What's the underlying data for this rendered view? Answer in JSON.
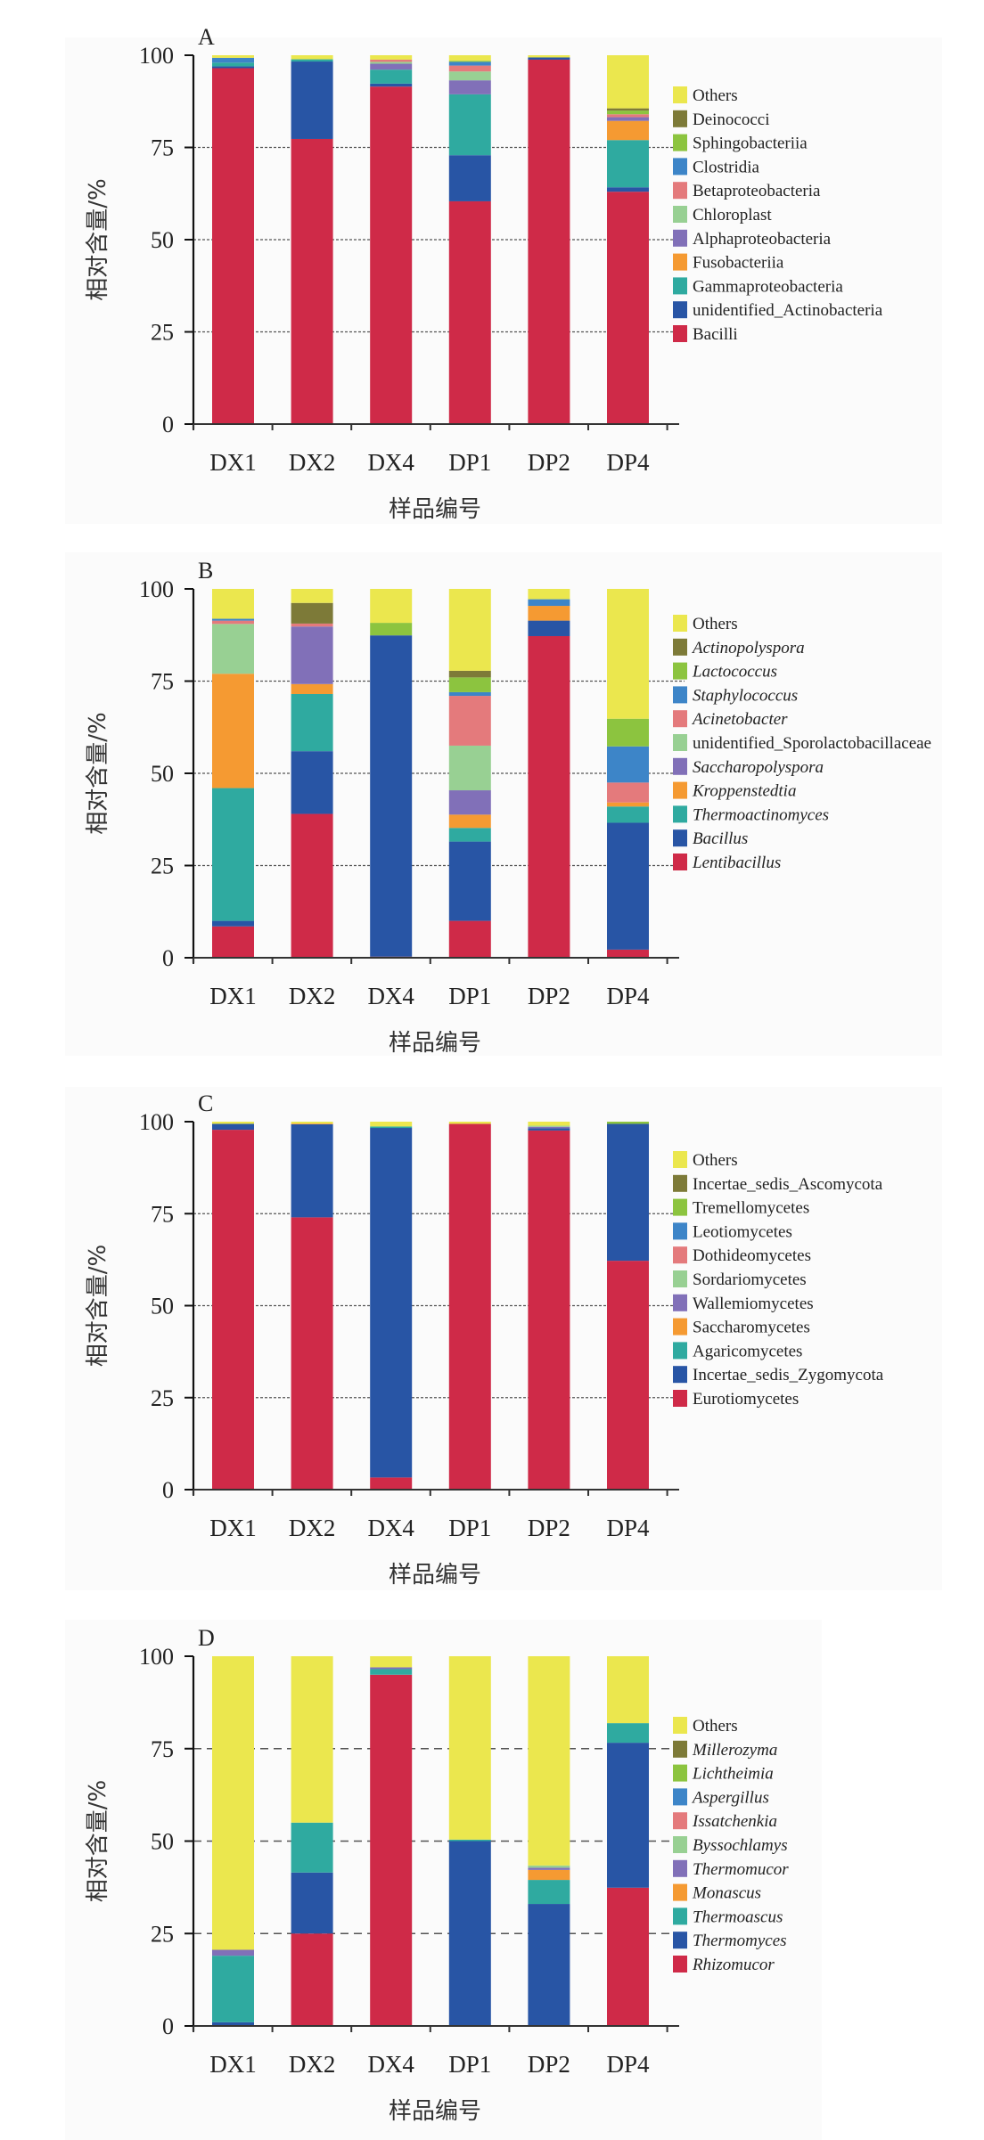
{
  "common": {
    "ylabel": "相对含量/%",
    "xlabel": "样品编号",
    "categories": [
      "DX1",
      "DX2",
      "DX4",
      "DP1",
      "DP2",
      "DP4"
    ],
    "yticks": [
      0,
      25,
      50,
      75,
      100
    ]
  },
  "chart_data": [
    {
      "type": "bar",
      "stacked": true,
      "panel": "A",
      "title": "A",
      "xlabel": "样品编号",
      "ylabel": "相对含量/%",
      "ylim": [
        0,
        100
      ],
      "grid": "dashed at 25, 50, 75",
      "legend_position": "right",
      "italic_legend": false,
      "categories": [
        "DX1",
        "DX2",
        "DX4",
        "DP1",
        "DP2",
        "DP4"
      ],
      "series": [
        {
          "name": "Bacilli",
          "color": "#cf2a48",
          "values": [
            96.5,
            77.3,
            91.5,
            60.4,
            98.8,
            63.0
          ]
        },
        {
          "name": "unidentified_Actinobacteria",
          "color": "#2855a5",
          "values": [
            0.5,
            21.0,
            0.8,
            12.5,
            0.6,
            1.2
          ]
        },
        {
          "name": "Gammaproteobacteria",
          "color": "#2faaa0",
          "values": [
            1.0,
            0.6,
            3.8,
            16.5,
            0.0,
            12.8
          ]
        },
        {
          "name": "Fusobacteriia",
          "color": "#f59a32",
          "values": [
            0.0,
            0.0,
            0.0,
            0.0,
            0.0,
            5.2
          ]
        },
        {
          "name": "Alphaproteobacteria",
          "color": "#8170b8",
          "values": [
            0.0,
            0.0,
            1.6,
            3.8,
            0.0,
            1.0
          ]
        },
        {
          "name": "Chloroplast",
          "color": "#98d093",
          "values": [
            0.0,
            0.0,
            0.5,
            2.4,
            0.0,
            0.0
          ]
        },
        {
          "name": "Betaproteobacteria",
          "color": "#e47a7c",
          "values": [
            0.0,
            0.0,
            0.6,
            1.6,
            0.0,
            0.8
          ]
        },
        {
          "name": "Clostridia",
          "color": "#3d85c8",
          "values": [
            1.3,
            0.0,
            0.0,
            1.0,
            0.0,
            0.0
          ]
        },
        {
          "name": "Sphingobacteriia",
          "color": "#8cc43f",
          "values": [
            0.0,
            0.0,
            0.0,
            0.3,
            0.0,
            1.0
          ]
        },
        {
          "name": "Deinococci",
          "color": "#7d7a38",
          "values": [
            0.0,
            0.0,
            0.0,
            0.0,
            0.0,
            0.6
          ]
        },
        {
          "name": "Others",
          "color": "#ebe74e",
          "values": [
            0.7,
            1.1,
            1.2,
            1.5,
            0.6,
            14.4
          ]
        }
      ]
    },
    {
      "type": "bar",
      "stacked": true,
      "panel": "B",
      "title": "B",
      "xlabel": "样品编号",
      "ylabel": "相对含量/%",
      "ylim": [
        0,
        100
      ],
      "grid": "dashed at 25, 50, 75",
      "legend_position": "right",
      "italic_legend": true,
      "categories": [
        "DX1",
        "DX2",
        "DX4",
        "DP1",
        "DP2",
        "DP4"
      ],
      "series": [
        {
          "name": "Lentibacillus",
          "color": "#cf2a48",
          "values": [
            8.5,
            39.0,
            0.3,
            10.0,
            87.2,
            2.2
          ]
        },
        {
          "name": "Bacillus",
          "color": "#2855a5",
          "values": [
            1.5,
            17.0,
            87.1,
            21.5,
            4.2,
            34.4
          ]
        },
        {
          "name": "Thermoactinomyces",
          "color": "#2faaa0",
          "values": [
            36.0,
            15.5,
            0.0,
            3.7,
            0.0,
            4.4
          ]
        },
        {
          "name": "Kroppenstedtia",
          "color": "#f59a32",
          "values": [
            31.0,
            2.7,
            0.0,
            3.6,
            4.0,
            1.1
          ]
        },
        {
          "name": "Saccharopolyspora",
          "color": "#8170b8",
          "values": [
            0.0,
            15.6,
            0.0,
            6.6,
            0.0,
            0.0
          ]
        },
        {
          "name": "unidentified_Sporolactobacillaceae",
          "color": "#98d093",
          "values": [
            13.5,
            0.0,
            0.0,
            12.1,
            0.0,
            0.0
          ]
        },
        {
          "name": "Acinetobacter",
          "color": "#e47a7c",
          "values": [
            0.9,
            0.8,
            0.0,
            13.5,
            0.0,
            5.4
          ]
        },
        {
          "name": "Staphylococcus",
          "color": "#3d85c8",
          "values": [
            0.5,
            0.0,
            0.0,
            1.0,
            1.8,
            9.8
          ]
        },
        {
          "name": "Lactococcus",
          "color": "#8cc43f",
          "values": [
            0.0,
            0.0,
            3.4,
            4.0,
            0.0,
            7.5
          ]
        },
        {
          "name": "Actinopolyspora",
          "color": "#7d7a38",
          "values": [
            0.0,
            5.6,
            0.0,
            1.8,
            0.0,
            0.0
          ]
        },
        {
          "name": "Others",
          "color": "#ebe74e",
          "values": [
            8.1,
            3.8,
            9.2,
            22.2,
            2.8,
            35.2
          ]
        }
      ]
    },
    {
      "type": "bar",
      "stacked": true,
      "panel": "C",
      "title": "C",
      "xlabel": "样品编号",
      "ylabel": "相对含量/%",
      "ylim": [
        0,
        100
      ],
      "grid": "dashed at 25, 50, 75",
      "legend_position": "right",
      "italic_legend": false,
      "categories": [
        "DX1",
        "DX2",
        "DX4",
        "DP1",
        "DP2",
        "DP4"
      ],
      "series": [
        {
          "name": "Eurotiomycetes",
          "color": "#cf2a48",
          "values": [
            97.8,
            74.0,
            3.3,
            99.4,
            97.6,
            62.2
          ]
        },
        {
          "name": "Incertae_sedis_Zygomycota",
          "color": "#2855a5",
          "values": [
            1.6,
            25.3,
            95.0,
            0.0,
            0.6,
            37.2
          ]
        },
        {
          "name": "Agaricomycetes",
          "color": "#2faaa0",
          "values": [
            0.0,
            0.0,
            0.4,
            0.0,
            0.0,
            0.0
          ]
        },
        {
          "name": "Saccharomycetes",
          "color": "#f59a32",
          "values": [
            0.0,
            0.2,
            0.0,
            0.0,
            0.0,
            0.0
          ]
        },
        {
          "name": "Wallemiomycetes",
          "color": "#8170b8",
          "values": [
            0.0,
            0.0,
            0.0,
            0.0,
            0.4,
            0.0
          ]
        },
        {
          "name": "Sordariomycetes",
          "color": "#98d093",
          "values": [
            0.0,
            0.0,
            0.0,
            0.0,
            0.3,
            0.0
          ]
        },
        {
          "name": "Dothideomycetes",
          "color": "#e47a7c",
          "values": [
            0.0,
            0.0,
            0.0,
            0.0,
            0.0,
            0.0
          ]
        },
        {
          "name": "Leotiomycetes",
          "color": "#3d85c8",
          "values": [
            0.0,
            0.0,
            0.0,
            0.0,
            0.0,
            0.0
          ]
        },
        {
          "name": "Tremellomycetes",
          "color": "#8cc43f",
          "values": [
            0.0,
            0.0,
            0.0,
            0.0,
            0.0,
            0.6
          ]
        },
        {
          "name": "Incertae_sedis_Ascomycota",
          "color": "#7d7a38",
          "values": [
            0.0,
            0.0,
            0.0,
            0.0,
            0.0,
            0.0
          ]
        },
        {
          "name": "Others",
          "color": "#ebe74e",
          "values": [
            0.6,
            0.5,
            1.3,
            0.6,
            1.1,
            0.0
          ]
        }
      ]
    },
    {
      "type": "bar",
      "stacked": true,
      "panel": "D",
      "title": "D",
      "xlabel": "样品编号",
      "ylabel": "相对含量/%",
      "ylim": [
        0,
        100
      ],
      "grid": "dashed at 25, 50, 75",
      "legend_position": "right",
      "italic_legend": true,
      "categories": [
        "DX1",
        "DX2",
        "DX4",
        "DP1",
        "DP2",
        "DP4"
      ],
      "series": [
        {
          "name": "Rhizomucor",
          "color": "#cf2a48",
          "values": [
            0.0,
            25.0,
            95.0,
            0.0,
            0.0,
            37.4
          ]
        },
        {
          "name": "Thermomyces",
          "color": "#2855a5",
          "values": [
            1.0,
            16.5,
            0.0,
            50.0,
            33.0,
            39.2
          ]
        },
        {
          "name": "Thermoascus",
          "color": "#2faaa0",
          "values": [
            18.0,
            13.5,
            1.5,
            0.4,
            6.5,
            5.3
          ]
        },
        {
          "name": "Monascus",
          "color": "#f59a32",
          "values": [
            0.0,
            0.0,
            0.0,
            0.0,
            2.7,
            0.0
          ]
        },
        {
          "name": "Thermomucor",
          "color": "#8170b8",
          "values": [
            1.6,
            0.0,
            0.5,
            0.0,
            0.6,
            0.0
          ]
        },
        {
          "name": "Byssochlamys",
          "color": "#98d093",
          "values": [
            0.0,
            0.0,
            0.0,
            0.0,
            0.6,
            0.0
          ]
        },
        {
          "name": "Issatchenkia",
          "color": "#e47a7c",
          "values": [
            0.0,
            0.0,
            0.0,
            0.0,
            0.0,
            0.0
          ]
        },
        {
          "name": "Aspergillus",
          "color": "#3d85c8",
          "values": [
            0.0,
            0.0,
            0.0,
            0.0,
            0.0,
            0.0
          ]
        },
        {
          "name": "Lichtheimia",
          "color": "#8cc43f",
          "values": [
            0.0,
            0.0,
            0.0,
            0.0,
            0.0,
            0.0
          ]
        },
        {
          "name": "Millerozyma",
          "color": "#7d7a38",
          "values": [
            0.0,
            0.0,
            0.0,
            0.0,
            0.0,
            0.0
          ]
        },
        {
          "name": "Others",
          "color": "#ebe74e",
          "values": [
            79.4,
            45.0,
            3.0,
            49.6,
            56.6,
            18.1
          ]
        }
      ]
    }
  ]
}
